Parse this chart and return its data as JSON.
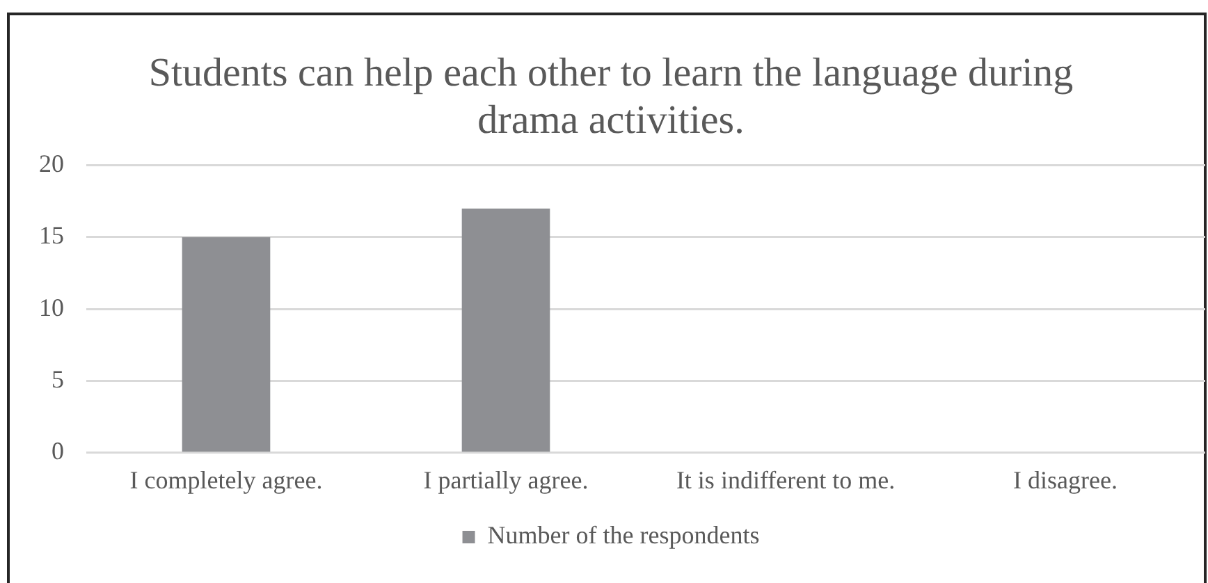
{
  "chart_data": {
    "type": "bar",
    "title": "Students can help each other to learn the language during drama activities.",
    "categories": [
      "I completely agree.",
      "I partially agree.",
      "It is indifferent to me.",
      "I disagree."
    ],
    "series": [
      {
        "name": "Number of the respondents",
        "color": "#8e8f93",
        "values": [
          15,
          17,
          0,
          0
        ]
      }
    ],
    "ylim": [
      0,
      20
    ],
    "yticks": [
      0,
      5,
      10,
      15,
      20
    ],
    "grid": "y",
    "legend": "bottom"
  }
}
